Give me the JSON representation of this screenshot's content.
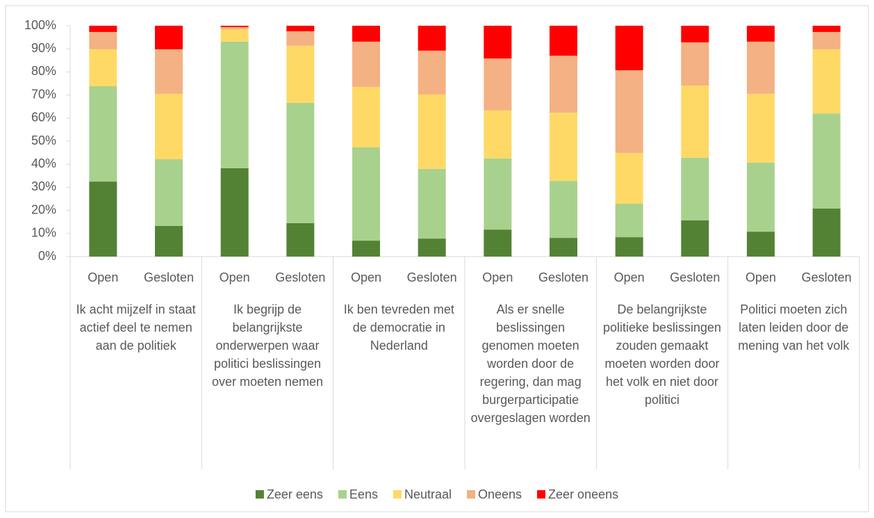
{
  "chart_data": {
    "type": "stacked_bar",
    "categories": [
      "Open",
      "Gesloten",
      "Open",
      "Gesloten",
      "Open",
      "Gesloten",
      "Open",
      "Gesloten",
      "Open",
      "Gesloten",
      "Open",
      "Gesloten"
    ],
    "groups": [
      "Ik acht mijzelf in staat actief deel te nemen aan de politiek",
      "Ik begrijp de belangrijkste onderwerpen waar politici beslissingen over moeten nemen",
      "Ik ben tevreden met de democratie in Nederland",
      "Als er snelle beslissingen genomen moeten worden door de regering, dan mag burgerparticipatie overgeslagen worden",
      "De belangrijkste politieke beslissingen zouden gemaakt moeten worden door het volk en niet door politici",
      "Politici moeten zich laten leiden door de mening van het volk"
    ],
    "series": [
      {
        "name": "Zeer eens",
        "color": "#548235",
        "values": [
          32.5,
          13.3,
          38.3,
          14.5,
          6.9,
          7.8,
          11.7,
          8.1,
          8.4,
          15.7,
          10.8,
          20.8
        ]
      },
      {
        "name": "Eens",
        "color": "#a9d18e",
        "values": [
          41.3,
          28.9,
          54.8,
          52.1,
          40.4,
          30.2,
          30.8,
          24.7,
          14.5,
          27.1,
          29.9,
          41.2
        ]
      },
      {
        "name": "Neutraal",
        "color": "#ffd966",
        "values": [
          16.0,
          28.3,
          5.4,
          24.7,
          26.2,
          32.2,
          20.8,
          29.5,
          22.0,
          31.3,
          29.8,
          27.8
        ]
      },
      {
        "name": "Oneens",
        "color": "#f4b183",
        "values": [
          7.5,
          19.3,
          0.9,
          6.3,
          19.6,
          19.0,
          22.5,
          24.7,
          35.8,
          18.7,
          22.6,
          7.5
        ]
      },
      {
        "name": "Zeer oneens",
        "color": "#ff0000",
        "values": [
          2.7,
          10.2,
          0.6,
          2.4,
          6.9,
          10.8,
          14.2,
          13.0,
          19.3,
          7.2,
          6.9,
          2.7
        ]
      }
    ],
    "ylim": [
      0,
      100
    ],
    "yticks": [
      {
        "value": 0,
        "label": "0%"
      },
      {
        "value": 10,
        "label": "10%"
      },
      {
        "value": 20,
        "label": "20%"
      },
      {
        "value": 30,
        "label": "30%"
      },
      {
        "value": 40,
        "label": "40%"
      },
      {
        "value": 50,
        "label": "50%"
      },
      {
        "value": 60,
        "label": "60%"
      },
      {
        "value": 70,
        "label": "70%"
      },
      {
        "value": 80,
        "label": "80%"
      },
      {
        "value": 90,
        "label": "90%"
      },
      {
        "value": 100,
        "label": "100%"
      }
    ],
    "legend": "bottom"
  }
}
